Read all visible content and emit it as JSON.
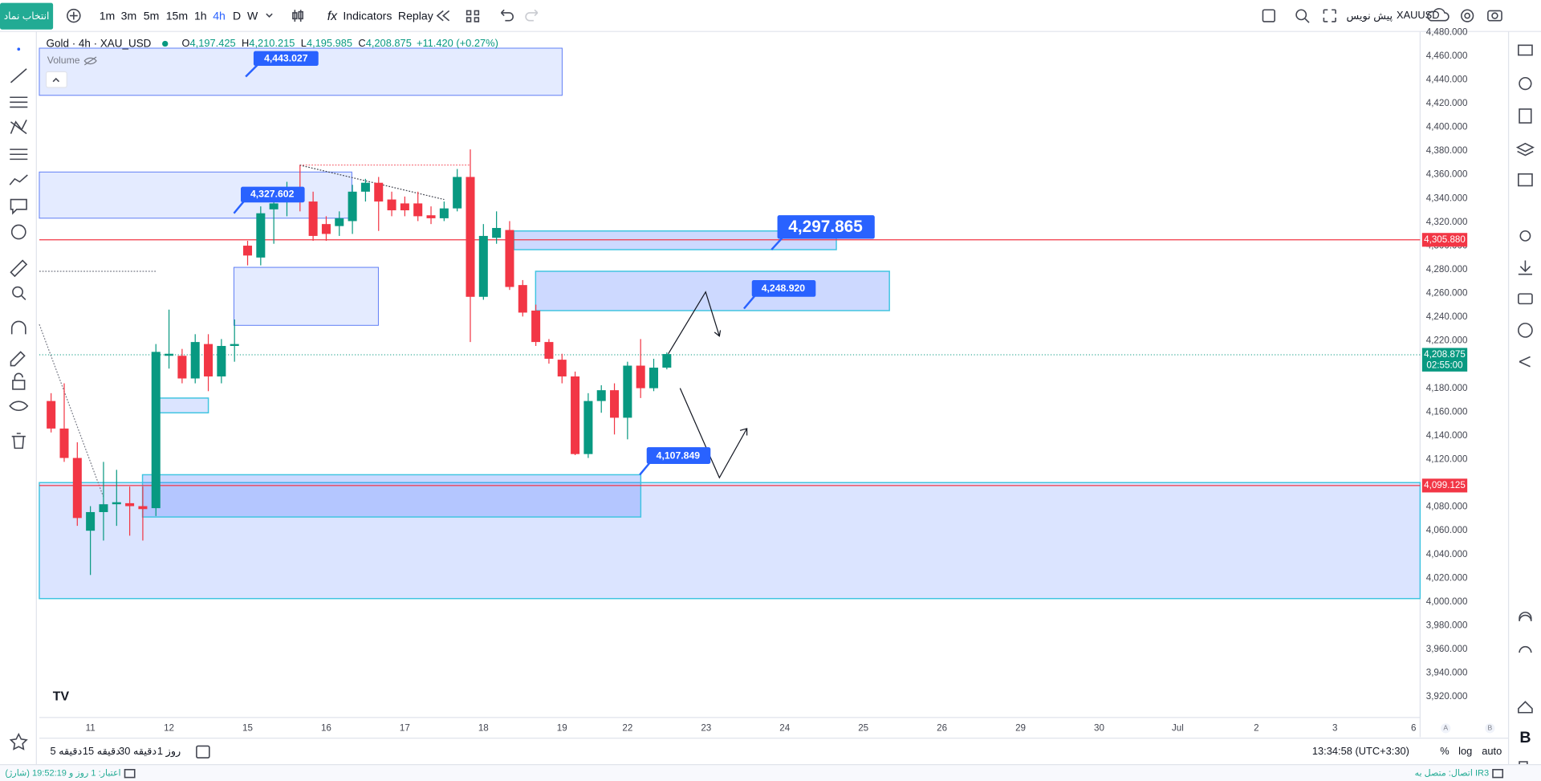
{
  "toolbar": {
    "symbol_search": "انتخاب نماد",
    "intervals": [
      "1m",
      "3m",
      "5m",
      "15m",
      "1h",
      "4h",
      "D",
      "W"
    ],
    "indicators": "Indicators",
    "replay": "Replay",
    "symbol": "XAUUSD",
    "layout_name": "پیش نویس"
  },
  "legend": {
    "title": "Gold · 4h · XAU_USD",
    "ohlc": [
      {
        "label": "O",
        "value": "4,197.425"
      },
      {
        "label": "H",
        "value": "4,210.215"
      },
      {
        "label": "L",
        "value": "4,195.985"
      },
      {
        "label": "C",
        "value": "4,208.875"
      }
    ],
    "change": "+11.420 (+0.27%)",
    "volume": "Volume"
  },
  "annotations": [
    "4,443.027",
    "4,327.602",
    "4,297.865",
    "4,248.920",
    "4,107.849"
  ],
  "price_labels": {
    "line_upper": "4,305.880",
    "line_lower": "4,099.125",
    "last": "4,208.875",
    "countdown": "02:55:00"
  },
  "chart_data": {
    "type": "candlestick",
    "open": [
      4169.3,
      4146.1,
      4121.3,
      4060.0,
      4075.7,
      4082.3,
      4083.2,
      4080.7,
      4079.0,
      4207.4,
      4207.4,
      4188.3,
      4217.3,
      4190.0,
      4215.7,
      4300.2,
      4290.2,
      4330.8,
      4337.4,
      4344.1,
      4337.4,
      4318.4,
      4316.7,
      4320.9,
      4345.7,
      4353.2,
      4339.1,
      4335.8,
      4335.8,
      4325.8,
      4323.3,
      4331.6,
      4358.1,
      4257.1,
      4306.8,
      4313.4,
      4267.0,
      4245.5,
      4219.0,
      4204.1,
      4190.0,
      4124.6,
      4169.3,
      4178.4,
      4155.2,
      4199.1,
      4180.1,
      4197.425
    ],
    "high": [
      4175.9,
      4184.2,
      4134.5,
      4080.7,
      4118.0,
      4111.3,
      4097.2,
      4097.2,
      4217.3,
      4246.3,
      4213.2,
      4225.6,
      4225.6,
      4221.5,
      4238.0,
      4304.3,
      4333.3,
      4345.7,
      4354.0,
      4368.1,
      4345.7,
      4325.0,
      4329.1,
      4351.5,
      4356.5,
      4358.1,
      4345.7,
      4341.6,
      4345.7,
      4333.3,
      4337.4,
      4364.8,
      4381.3,
      4318.4,
      4329.1,
      4320.9,
      4271.2,
      4250.5,
      4221.5,
      4209.1,
      4194.1,
      4175.9,
      4182.6,
      4184.2,
      4202.4,
      4221.5,
      4204.9,
      4210.215
    ],
    "low": [
      4142.8,
      4118.0,
      4064.1,
      4022.7,
      4051.7,
      4064.1,
      4055.8,
      4051.7,
      4072.4,
      4196.6,
      4184.2,
      4184.2,
      4177.6,
      4184.2,
      4202.4,
      4283.6,
      4283.6,
      4301.8,
      4325.0,
      4329.1,
      4304.3,
      4304.3,
      4308.4,
      4310.1,
      4337.4,
      4312.6,
      4325.0,
      4325.0,
      4320.9,
      4318.4,
      4320.9,
      4329.1,
      4219.0,
      4254.6,
      4301.8,
      4262.9,
      4240.5,
      4215.7,
      4200.8,
      4184.2,
      4123.7,
      4121.3,
      4159.4,
      4141.1,
      4137.0,
      4171.8,
      4177.6,
      4195.985
    ],
    "close": [
      4146.1,
      4121.3,
      4070.7,
      4075.7,
      4082.3,
      4084.0,
      4080.7,
      4078.2,
      4210.7,
      4209.1,
      4188.3,
      4219.0,
      4190.0,
      4215.7,
      4217.3,
      4291.9,
      4327.5,
      4335.8,
      4348.2,
      4337.4,
      4308.4,
      4310.1,
      4323.3,
      4345.7,
      4353.2,
      4337.4,
      4330.0,
      4330.0,
      4325.0,
      4323.3,
      4331.6,
      4358.1,
      4257.1,
      4308.4,
      4315.1,
      4265.4,
      4243.8,
      4219.0,
      4204.9,
      4190.0,
      4124.6,
      4169.3,
      4178.4,
      4155.2,
      4199.1,
      4180.1,
      4197.4,
      4208.875
    ],
    "up_color": "#089981",
    "down_color": "#f23645",
    "ylim": [
      3902.6,
      4480.7
    ],
    "yticks": [
      {
        "value": 4480,
        "label": "4,480.000"
      },
      {
        "value": 4460,
        "label": "4,460.000"
      },
      {
        "value": 4440,
        "label": "4,440.000"
      },
      {
        "value": 4420,
        "label": "4,420.000"
      },
      {
        "value": 4400,
        "label": "4,400.000"
      },
      {
        "value": 4380,
        "label": "4,380.000"
      },
      {
        "value": 4360,
        "label": "4,360.000"
      },
      {
        "value": 4340,
        "label": "4,340.000"
      },
      {
        "value": 4320,
        "label": "4,320.000"
      },
      {
        "value": 4300,
        "label": "4,300.000"
      },
      {
        "value": 4280,
        "label": "4,280.000"
      },
      {
        "value": 4260,
        "label": "4,260.000"
      },
      {
        "value": 4240,
        "label": "4,240.000"
      },
      {
        "value": 4220,
        "label": "4,220.000"
      },
      {
        "value": 4200,
        "label": "4,200.000"
      },
      {
        "value": 4180,
        "label": "4,180.000"
      },
      {
        "value": 4160,
        "label": "4,160.000"
      },
      {
        "value": 4140,
        "label": "4,140.000"
      },
      {
        "value": 4120,
        "label": "4,120.000"
      },
      {
        "value": 4100,
        "label": "4,100.000"
      },
      {
        "value": 4080,
        "label": "4,080.000"
      },
      {
        "value": 4060,
        "label": "4,060.000"
      },
      {
        "value": 4040,
        "label": "4,040.000"
      },
      {
        "value": 4020,
        "label": "4,020.000"
      },
      {
        "value": 4000,
        "label": "4,000.000"
      },
      {
        "value": 3980,
        "label": "3,980.000"
      },
      {
        "value": 3960,
        "label": "3,960.000"
      },
      {
        "value": 3940,
        "label": "3,940.000"
      },
      {
        "value": 3920,
        "label": "3,920.000"
      }
    ],
    "xlim": [
      -0.9,
      104.5
    ],
    "xticks": [
      {
        "value": 3,
        "label": "11"
      },
      {
        "value": 9,
        "label": "12"
      },
      {
        "value": 15,
        "label": "15"
      },
      {
        "value": 21,
        "label": "16"
      },
      {
        "value": 27,
        "label": "17"
      },
      {
        "value": 33,
        "label": "18"
      },
      {
        "value": 39,
        "label": "19"
      },
      {
        "value": 44,
        "label": "22"
      },
      {
        "value": 50,
        "label": "23"
      },
      {
        "value": 56,
        "label": "24"
      },
      {
        "value": 62,
        "label": "25"
      },
      {
        "value": 68,
        "label": "26"
      },
      {
        "value": 74,
        "label": "29"
      },
      {
        "value": 80,
        "label": "30"
      },
      {
        "value": 86,
        "label": "Jul"
      },
      {
        "value": 92,
        "label": "2"
      },
      {
        "value": 98,
        "label": "3"
      },
      {
        "value": 104,
        "label": "6"
      }
    ]
  },
  "bottom_bar": {
    "ranges": [
      "5 دقیقه",
      "15 دقیقه",
      "30 دقیقه",
      "روز 1"
    ],
    "clock": "13:34:58 (UTC+3:30)",
    "percent": "%",
    "log": "log",
    "auto": "auto"
  },
  "scale_buttons": [
    "A",
    "B"
  ],
  "status_bar": {
    "credit": "اعتبار: 1 روز و 19:52:19 (شارژ)",
    "connection": "اتصال: متصل به IR3"
  }
}
